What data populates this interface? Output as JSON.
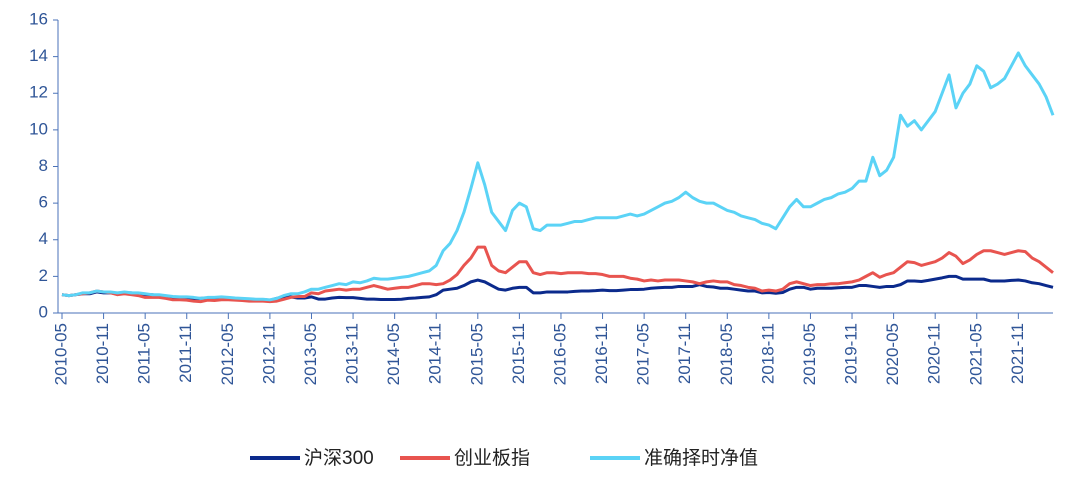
{
  "chart_data": {
    "type": "line",
    "x": [
      "2010-05",
      null,
      null,
      null,
      null,
      null,
      "2010-11",
      null,
      null,
      null,
      null,
      null,
      "2011-05",
      null,
      null,
      null,
      null,
      null,
      "2011-11",
      null,
      null,
      null,
      null,
      null,
      "2012-05",
      null,
      null,
      null,
      null,
      null,
      "2012-11",
      null,
      null,
      null,
      null,
      null,
      "2013-05",
      null,
      null,
      null,
      null,
      null,
      "2013-11",
      null,
      null,
      null,
      null,
      null,
      "2014-05",
      null,
      null,
      null,
      null,
      null,
      "2014-11",
      null,
      null,
      null,
      null,
      null,
      "2015-05",
      null,
      null,
      null,
      null,
      null,
      "2015-11",
      null,
      null,
      null,
      null,
      null,
      "2016-05",
      null,
      null,
      null,
      null,
      null,
      "2016-11",
      null,
      null,
      null,
      null,
      null,
      "2017-05",
      null,
      null,
      null,
      null,
      null,
      "2017-11",
      null,
      null,
      null,
      null,
      null,
      "2018-05",
      null,
      null,
      null,
      null,
      null,
      "2018-11",
      null,
      null,
      null,
      null,
      null,
      "2019-05",
      null,
      null,
      null,
      null,
      null,
      "2019-11",
      null,
      null,
      null,
      null,
      null,
      "2020-05",
      null,
      null,
      null,
      null,
      null,
      "2020-11",
      null,
      null,
      null,
      null,
      null,
      "2021-05",
      null,
      null,
      null,
      null,
      null,
      "2021-11",
      null,
      null,
      null,
      null,
      null
    ],
    "series": [
      {
        "name": "沪深300",
        "color": "#0b2a8c",
        "values": [
          1.0,
          0.95,
          1.0,
          1.05,
          1.05,
          1.15,
          1.1,
          1.1,
          1.05,
          1.1,
          1.1,
          1.05,
          1.0,
          1.0,
          0.95,
          0.9,
          0.85,
          0.85,
          0.8,
          0.78,
          0.8,
          0.82,
          0.8,
          0.82,
          0.82,
          0.78,
          0.74,
          0.72,
          0.72,
          0.74,
          0.7,
          0.8,
          0.85,
          0.88,
          0.82,
          0.82,
          0.88,
          0.76,
          0.76,
          0.82,
          0.85,
          0.84,
          0.84,
          0.8,
          0.76,
          0.76,
          0.74,
          0.74,
          0.74,
          0.75,
          0.8,
          0.82,
          0.85,
          0.88,
          1.0,
          1.25,
          1.3,
          1.35,
          1.5,
          1.7,
          1.8,
          1.7,
          1.5,
          1.3,
          1.25,
          1.35,
          1.4,
          1.4,
          1.1,
          1.1,
          1.15,
          1.15,
          1.15,
          1.15,
          1.18,
          1.2,
          1.2,
          1.22,
          1.25,
          1.22,
          1.22,
          1.25,
          1.28,
          1.28,
          1.3,
          1.35,
          1.38,
          1.4,
          1.4,
          1.45,
          1.45,
          1.45,
          1.55,
          1.45,
          1.42,
          1.35,
          1.35,
          1.3,
          1.25,
          1.2,
          1.2,
          1.1,
          1.12,
          1.08,
          1.12,
          1.3,
          1.4,
          1.4,
          1.3,
          1.35,
          1.35,
          1.35,
          1.38,
          1.4,
          1.4,
          1.5,
          1.5,
          1.45,
          1.4,
          1.45,
          1.45,
          1.55,
          1.75,
          1.75,
          1.72,
          1.78,
          1.85,
          1.92,
          2.0,
          2.0,
          1.85,
          1.85,
          1.85,
          1.85,
          1.75,
          1.75,
          1.75,
          1.78,
          1.8,
          1.75,
          1.65,
          1.6,
          1.5,
          1.4
        ]
      },
      {
        "name": "创业板指",
        "color": "#e8544f",
        "values": [
          1.0,
          0.95,
          1.0,
          1.05,
          1.1,
          1.2,
          1.15,
          1.1,
          1.0,
          1.05,
          1.0,
          0.95,
          0.85,
          0.85,
          0.85,
          0.8,
          0.72,
          0.72,
          0.7,
          0.65,
          0.62,
          0.7,
          0.68,
          0.72,
          0.72,
          0.7,
          0.68,
          0.65,
          0.65,
          0.65,
          0.62,
          0.65,
          0.75,
          0.85,
          0.9,
          0.9,
          1.1,
          1.05,
          1.2,
          1.25,
          1.3,
          1.25,
          1.3,
          1.3,
          1.4,
          1.5,
          1.4,
          1.3,
          1.35,
          1.4,
          1.4,
          1.5,
          1.6,
          1.6,
          1.55,
          1.6,
          1.8,
          2.1,
          2.6,
          3.0,
          3.6,
          3.6,
          2.6,
          2.3,
          2.2,
          2.5,
          2.8,
          2.8,
          2.2,
          2.1,
          2.2,
          2.2,
          2.15,
          2.2,
          2.2,
          2.2,
          2.15,
          2.15,
          2.1,
          2.0,
          2.0,
          2.0,
          1.9,
          1.85,
          1.75,
          1.8,
          1.75,
          1.8,
          1.8,
          1.8,
          1.75,
          1.7,
          1.6,
          1.7,
          1.75,
          1.7,
          1.7,
          1.55,
          1.5,
          1.4,
          1.35,
          1.2,
          1.25,
          1.2,
          1.3,
          1.6,
          1.7,
          1.6,
          1.5,
          1.55,
          1.55,
          1.6,
          1.6,
          1.65,
          1.7,
          1.8,
          2.0,
          2.2,
          1.95,
          2.1,
          2.2,
          2.5,
          2.8,
          2.75,
          2.6,
          2.7,
          2.8,
          3.0,
          3.3,
          3.1,
          2.7,
          2.9,
          3.2,
          3.4,
          3.4,
          3.3,
          3.2,
          3.3,
          3.4,
          3.35,
          3.0,
          2.8,
          2.5,
          2.2
        ]
      },
      {
        "name": "准确择时净值",
        "color": "#5bd3f6",
        "values": [
          1.0,
          0.95,
          1.0,
          1.1,
          1.1,
          1.2,
          1.15,
          1.15,
          1.1,
          1.15,
          1.1,
          1.1,
          1.05,
          1.0,
          1.0,
          0.95,
          0.9,
          0.88,
          0.88,
          0.85,
          0.8,
          0.85,
          0.85,
          0.88,
          0.85,
          0.82,
          0.8,
          0.78,
          0.75,
          0.75,
          0.72,
          0.8,
          0.95,
          1.05,
          1.05,
          1.15,
          1.3,
          1.3,
          1.4,
          1.5,
          1.6,
          1.55,
          1.7,
          1.65,
          1.75,
          1.9,
          1.85,
          1.85,
          1.9,
          1.95,
          2.0,
          2.1,
          2.2,
          2.3,
          2.6,
          3.4,
          3.8,
          4.5,
          5.5,
          6.8,
          8.2,
          7.0,
          5.5,
          5.0,
          4.5,
          5.6,
          6.0,
          5.8,
          4.6,
          4.5,
          4.8,
          4.8,
          4.8,
          4.9,
          5.0,
          5.0,
          5.1,
          5.2,
          5.2,
          5.2,
          5.2,
          5.3,
          5.4,
          5.3,
          5.4,
          5.6,
          5.8,
          6.0,
          6.1,
          6.3,
          6.6,
          6.3,
          6.1,
          6.0,
          6.0,
          5.8,
          5.6,
          5.5,
          5.3,
          5.2,
          5.1,
          4.9,
          4.8,
          4.6,
          5.2,
          5.8,
          6.2,
          5.8,
          5.8,
          6.0,
          6.2,
          6.3,
          6.5,
          6.6,
          6.8,
          7.2,
          7.2,
          8.5,
          7.5,
          7.8,
          8.5,
          10.8,
          10.2,
          10.5,
          10.0,
          10.5,
          11.0,
          12.0,
          13.0,
          11.2,
          12.0,
          12.5,
          13.5,
          13.2,
          12.3,
          12.5,
          12.8,
          13.5,
          14.2,
          13.5,
          13.0,
          12.5,
          11.8,
          10.8
        ]
      }
    ],
    "ylim": [
      0,
      16
    ],
    "yticks": [
      0,
      2,
      4,
      6,
      8,
      10,
      12,
      14,
      16
    ],
    "grid": false,
    "legend": "bottom"
  }
}
